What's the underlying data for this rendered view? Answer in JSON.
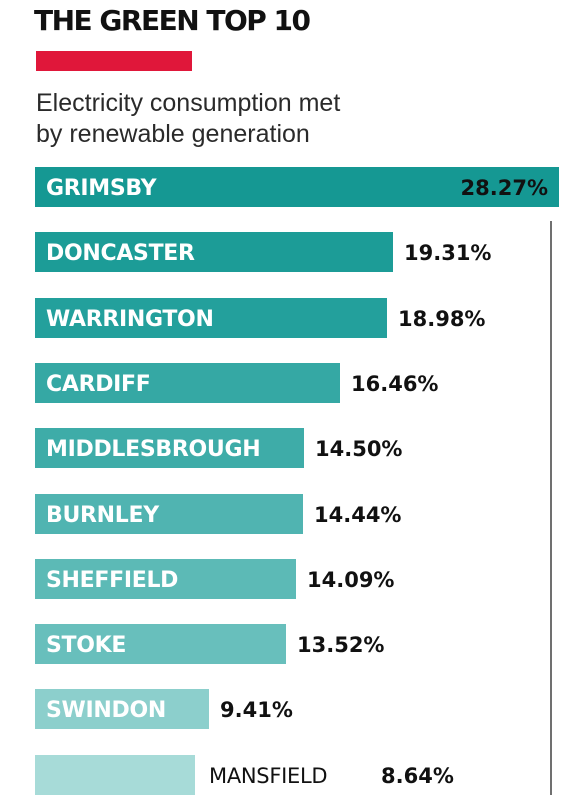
{
  "header": {
    "title": "THE GREEN TOP 10",
    "subtitle_line1": "Electricity consumption met",
    "subtitle_line2": "by renewable generation"
  },
  "colors": {
    "accent": "#e0173a",
    "bar_gradient": [
      "#159893",
      "#1c9c97",
      "#23a09c",
      "#35a8a4",
      "#3eaca8",
      "#50b4b1",
      "#5cbab6",
      "#68bfbc",
      "#8ccfcc",
      "#a7dbd8"
    ],
    "label_on_bar": "#ffffff",
    "label_off_bar": "#111111",
    "axis_line": "#111111"
  },
  "chart_data": {
    "type": "bar",
    "orientation": "horizontal",
    "title": "THE GREEN TOP 10",
    "subtitle": "Electricity consumption met by renewable generation",
    "categories": [
      "GRIMSBY",
      "DONCASTER",
      "WARRINGTON",
      "CARDIFF",
      "MIDDLESBROUGH",
      "BURNLEY",
      "SHEFFIELD",
      "STOKE",
      "SWINDON",
      "MANSFIELD"
    ],
    "values": [
      28.27,
      19.31,
      18.98,
      16.46,
      14.5,
      14.44,
      14.09,
      13.52,
      9.41,
      8.64
    ],
    "value_labels": [
      "28.27%",
      "19.31%",
      "18.98%",
      "16.46%",
      "14.50%",
      "14.44%",
      "14.09%",
      "13.52%",
      "9.41%",
      "8.64%"
    ],
    "unit": "%",
    "xlim": [
      0,
      28.27
    ],
    "grid": false,
    "legend": "none"
  }
}
